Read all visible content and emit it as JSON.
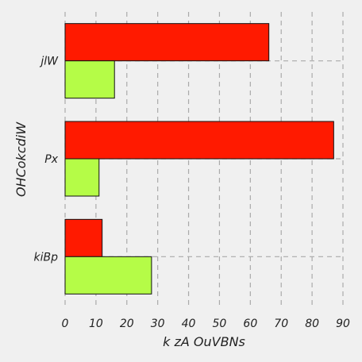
{
  "chart_data": {
    "type": "bar",
    "orientation": "horizontal",
    "title": "",
    "xlabel": "k  zA OuVBNs",
    "ylabel": "OHCokcdiW",
    "categories": [
      "jlW",
      "Px",
      "kiBp"
    ],
    "series": [
      {
        "values": [
          66,
          87,
          12
        ],
        "color": "#ff1a00"
      },
      {
        "values": [
          16,
          11,
          28
        ],
        "color": "#b5fc47"
      }
    ],
    "xlim": [
      0,
      90
    ],
    "xticks": [
      0,
      10,
      20,
      30,
      40,
      50,
      60,
      70,
      80,
      90
    ],
    "grid": true,
    "background": "#f0f0f0",
    "grid_color": "#aaaaaa"
  }
}
